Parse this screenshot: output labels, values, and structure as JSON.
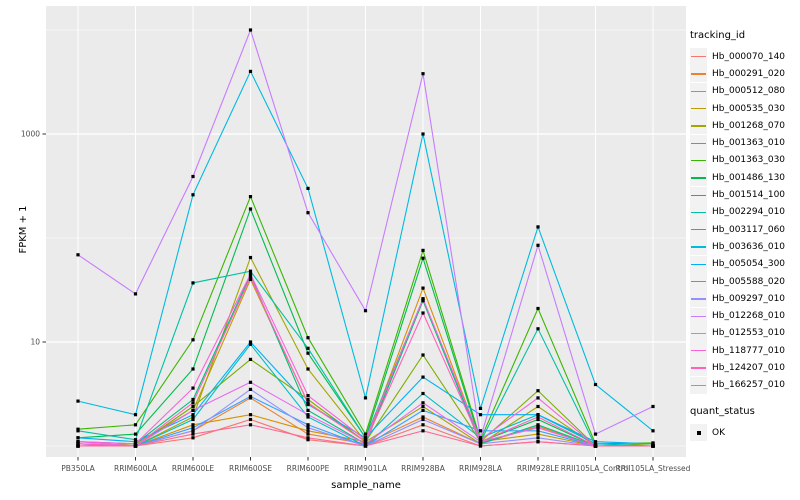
{
  "chart_data": {
    "type": "line",
    "title": "",
    "xlabel": "sample_name",
    "ylabel": "FPKM + 1",
    "y_scale": "log10",
    "grid": true,
    "legend_position": "right",
    "panel_bg": "#EBEBEB",
    "grid_color": "#FFFFFF",
    "point_color": "#000000",
    "axis_text_color": "#4D4D4D",
    "tick_color": "#333333",
    "y_major_ticks": [
      {
        "label": "1000",
        "value": 1000
      },
      {
        "label": "10",
        "value": 10
      }
    ],
    "y_minor_ticks": [
      1,
      100,
      10000
    ],
    "ylim": [
      0.9,
      13000
    ],
    "categories": [
      "PB350LA",
      "RRIM600LA",
      "RRIM600LE",
      "RRIM600SE",
      "RRIM600PE",
      "RRIM901LA",
      "RRIM928BA",
      "RRIM928LA",
      "RRIM928LE",
      "RRII105LA_Control",
      "RRII105LA_Stressed"
    ],
    "series": [
      {
        "name": "Hb_000070_140",
        "color": "#F8766D",
        "values": [
          1.0,
          1.0,
          1.2,
          1.8,
          1.15,
          1.0,
          1.6,
          1.0,
          1.1,
          1.0,
          1.0
        ]
      },
      {
        "name": "Hb_000291_020",
        "color": "#EA8331",
        "values": [
          1.0,
          1.0,
          1.4,
          2.9,
          1.3,
          1.05,
          1.9,
          1.05,
          1.55,
          1.0,
          1.0
        ]
      },
      {
        "name": "Hb_000512_080",
        "color": "#D89000",
        "values": [
          1.0,
          1.0,
          1.6,
          2.0,
          1.4,
          1.1,
          33,
          1.1,
          1.5,
          1.0,
          1.0
        ]
      },
      {
        "name": "Hb_000535_030",
        "color": "#C09B00",
        "values": [
          1.0,
          1.05,
          2.2,
          40,
          2.6,
          1.1,
          25,
          1.1,
          1.3,
          1.0,
          1.0
        ]
      },
      {
        "name": "Hb_001268_070",
        "color": "#A3A500",
        "values": [
          1.0,
          1.0,
          1.9,
          65,
          5.5,
          1.1,
          2.4,
          1.05,
          2.4,
          1.0,
          1.0
        ]
      },
      {
        "name": "Hb_001363_010",
        "color": "#7CAE00",
        "values": [
          1.0,
          1.0,
          2.4,
          6.8,
          2.8,
          1.1,
          7.5,
          1.1,
          3.4,
          1.0,
          1.05
        ]
      },
      {
        "name": "Hb_001363_030",
        "color": "#39B600",
        "values": [
          1.45,
          1.6,
          10.5,
          250,
          11,
          1.3,
          76,
          1.15,
          21,
          1.05,
          1.07
        ]
      },
      {
        "name": "Hb_001486_130",
        "color": "#00BB4E",
        "values": [
          1.2,
          1.3,
          5.5,
          190,
          7.8,
          1.2,
          64,
          1.1,
          1.8,
          1.0,
          1.0
        ]
      },
      {
        "name": "Hb_001514_100",
        "color": "#00BF7D",
        "values": [
          1.1,
          1.05,
          2.8,
          44,
          2.2,
          1.05,
          25,
          1.05,
          1.6,
          1.0,
          1.0
        ]
      },
      {
        "name": "Hb_002294_010",
        "color": "#00C1A3",
        "values": [
          1.4,
          1.15,
          37,
          48,
          8.7,
          1.2,
          26,
          1.1,
          13.4,
          1.0,
          1.0
        ]
      },
      {
        "name": "Hb_003117_060",
        "color": "#00BFC4",
        "values": [
          1.05,
          1.0,
          1.8,
          9.5,
          1.9,
          1.0,
          3.2,
          1.2,
          2.0,
          1.05,
          1.0
        ]
      },
      {
        "name": "Hb_003636_010",
        "color": "#00BAE0",
        "values": [
          2.7,
          2.0,
          260,
          4000,
          300,
          2.9,
          1000,
          2.3,
          128,
          3.9,
          1.4
        ]
      },
      {
        "name": "Hb_005054_300",
        "color": "#00B0F6",
        "values": [
          1.2,
          1.1,
          2.0,
          10,
          2.5,
          1.2,
          4.6,
          2.0,
          2.0,
          1.1,
          1.05
        ]
      },
      {
        "name": "Hb_005588_020",
        "color": "#35A2FF",
        "values": [
          1.05,
          1.0,
          1.5,
          3.0,
          1.6,
          1.0,
          2.2,
          1.4,
          1.4,
          1.0,
          1.0
        ]
      },
      {
        "name": "Hb_009297_010",
        "color": "#9590FF",
        "values": [
          1.0,
          1.0,
          1.4,
          3.5,
          1.5,
          1.0,
          1.8,
          1.05,
          1.2,
          1.0,
          1.0
        ]
      },
      {
        "name": "Hb_012268_010",
        "color": "#C77CFF",
        "values": [
          69,
          29,
          390,
          10000,
          175,
          20,
          3800,
          1.2,
          85,
          1.3,
          2.4
        ]
      },
      {
        "name": "Hb_012553_010",
        "color": "#E76BF3",
        "values": [
          1.1,
          1.0,
          2.2,
          4.1,
          2.0,
          1.05,
          2.6,
          1.1,
          1.5,
          1.0,
          1.0
        ]
      },
      {
        "name": "Hb_118777_010",
        "color": "#FA62DB",
        "values": [
          1.1,
          1.05,
          3.6,
          45,
          3.05,
          1.15,
          26,
          1.15,
          2.9,
          1.0,
          1.0
        ]
      },
      {
        "name": "Hb_124207_010",
        "color": "#FF62BC",
        "values": [
          1.05,
          1.0,
          2.6,
          42,
          2.56,
          1.1,
          19,
          1.1,
          1.9,
          1.0,
          1.0
        ]
      },
      {
        "name": "Hb_166257_010",
        "color": "#FF6A98",
        "values": [
          1.0,
          1.0,
          1.3,
          1.6,
          1.2,
          1.0,
          1.4,
          1.0,
          1.1,
          1.0,
          1.0
        ]
      }
    ]
  },
  "legend": {
    "tracking_title": "tracking_id",
    "quant_title": "quant_status",
    "quant_items": [
      {
        "label": "OK"
      }
    ]
  }
}
